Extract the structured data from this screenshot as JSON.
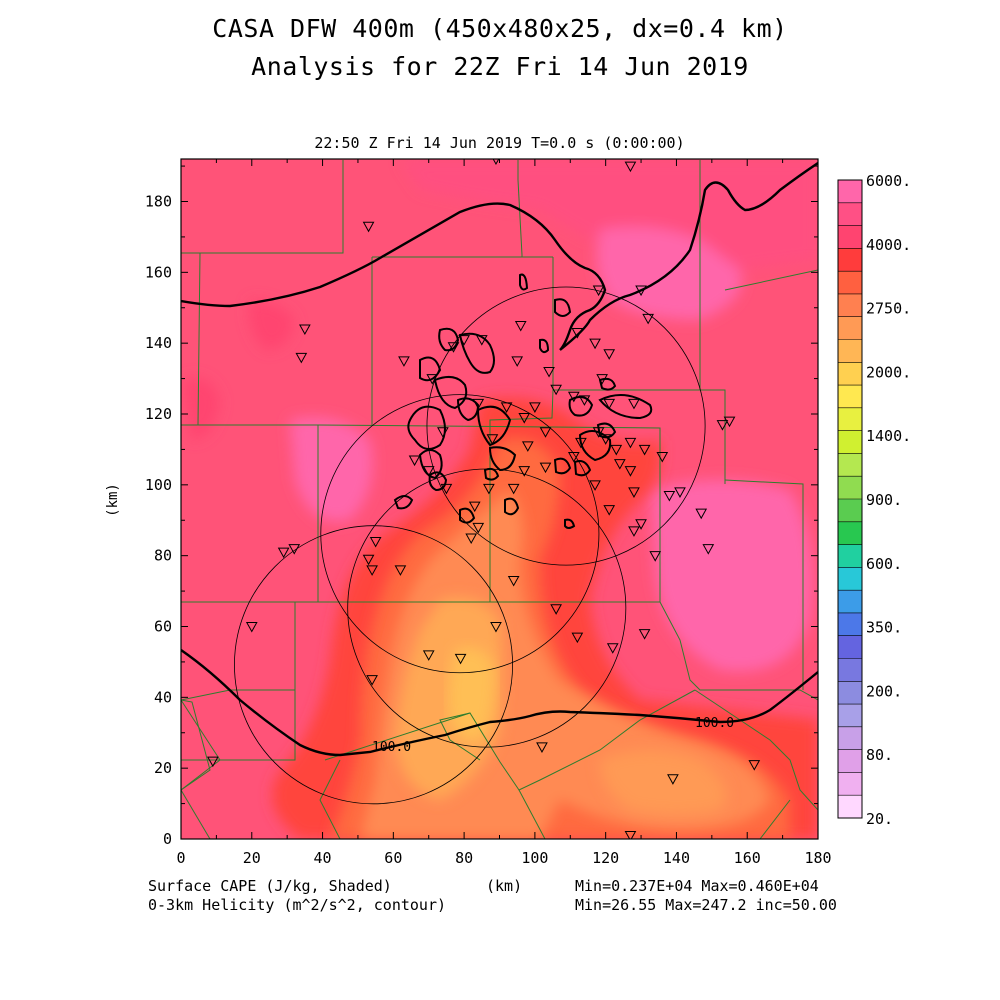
{
  "header": {
    "title_line1": "CASA DFW 400m (450x480x25, dx=0.4 km)",
    "title_line2": "Analysis for 22Z Fri 14 Jun 2019",
    "subtitle": "22:50 Z Fri 14 Jun 2019   T=0.0 s (0:00:00)"
  },
  "footer": {
    "field1_label": "Surface CAPE (J/kg, Shaded)",
    "field2_label": "0-3km Helicity (m^2/s^2, contour)",
    "xunit": "(km)",
    "field1_stats": "Min=0.237E+04 Max=0.460E+04",
    "field2_stats": "Min=26.55 Max=247.2 inc=50.00"
  },
  "chart_data": {
    "type": "heatmap",
    "xlabel": "(km)",
    "ylabel": "(km)",
    "xlim": [
      0,
      180
    ],
    "ylim": [
      0,
      192
    ],
    "xticks": [
      0,
      20,
      40,
      60,
      80,
      100,
      120,
      140,
      160,
      180
    ],
    "yticks": [
      0,
      20,
      40,
      60,
      80,
      100,
      120,
      140,
      160,
      180
    ],
    "colorbar": {
      "labels": [
        "6000.",
        "4000.",
        "2750.",
        "2000.",
        "1400.",
        "900.",
        "600.",
        "350.",
        "200.",
        "80.",
        "20."
      ],
      "colors": [
        "#ff66aa",
        "#ff5085",
        "#ff4470",
        "#ff3c3c",
        "#ff6040",
        "#ff8050",
        "#ff9a55",
        "#ffb655",
        "#ffd050",
        "#ffe850",
        "#e8f040",
        "#d0f030",
        "#b4e850",
        "#90dc50",
        "#5acc50",
        "#28c850",
        "#20d0a0",
        "#28c8d8",
        "#3c9ce8",
        "#4c78e8",
        "#6464e0",
        "#7878e0",
        "#8c8ce0",
        "#a8a0e8",
        "#c8a0e8",
        "#e0a0e8",
        "#f0b0f0",
        "#ffd8ff"
      ]
    },
    "cape_stats": {
      "min": 2370,
      "max": 4600
    },
    "helicity_stats": {
      "min": 26.55,
      "max": 247.2,
      "inc": 50.0
    },
    "contour_labels": [
      "100.0",
      "100.0"
    ],
    "radar_rings": [
      {
        "center": [
          54.4,
          49.2
        ],
        "radius": 39.3
      },
      {
        "center": [
          78.8,
          86.2
        ],
        "radius": 39.3
      },
      {
        "center": [
          108.8,
          116.6
        ],
        "radius": 39.3
      },
      {
        "center": [
          86.4,
          65.2
        ],
        "radius": 39.3
      }
    ],
    "stations": [
      [
        89,
        192
      ],
      [
        127,
        190
      ],
      [
        53,
        173
      ],
      [
        35,
        144
      ],
      [
        34,
        136
      ],
      [
        118,
        155
      ],
      [
        130,
        155
      ],
      [
        132,
        147
      ],
      [
        96,
        145
      ],
      [
        85,
        141
      ],
      [
        63,
        135
      ],
      [
        71,
        130
      ],
      [
        77,
        139
      ],
      [
        80,
        141
      ],
      [
        95,
        135
      ],
      [
        112,
        143
      ],
      [
        117,
        140
      ],
      [
        121,
        137
      ],
      [
        104,
        132
      ],
      [
        119,
        130
      ],
      [
        106,
        127
      ],
      [
        111,
        125
      ],
      [
        114,
        124
      ],
      [
        121,
        123
      ],
      [
        128,
        123
      ],
      [
        118,
        115
      ],
      [
        113,
        112
      ],
      [
        120,
        113
      ],
      [
        127,
        112
      ],
      [
        123,
        110
      ],
      [
        124,
        106
      ],
      [
        127,
        104
      ],
      [
        131,
        110
      ],
      [
        136,
        108
      ],
      [
        92,
        122
      ],
      [
        100,
        122
      ],
      [
        84,
        123
      ],
      [
        97,
        119
      ],
      [
        103,
        115
      ],
      [
        103,
        105
      ],
      [
        97,
        104
      ],
      [
        94,
        99
      ],
      [
        87,
        99
      ],
      [
        83,
        94
      ],
      [
        84,
        88
      ],
      [
        75,
        99
      ],
      [
        70,
        104
      ],
      [
        66,
        107
      ],
      [
        74,
        115
      ],
      [
        88,
        113
      ],
      [
        98,
        111
      ],
      [
        111,
        108
      ],
      [
        117,
        100
      ],
      [
        121,
        93
      ],
      [
        128,
        98
      ],
      [
        130,
        89
      ],
      [
        138,
        97
      ],
      [
        147,
        92
      ],
      [
        128,
        87
      ],
      [
        134,
        80
      ],
      [
        149,
        82
      ],
      [
        141,
        98
      ],
      [
        153,
        117
      ],
      [
        155,
        118
      ],
      [
        29,
        81
      ],
      [
        32,
        82
      ],
      [
        55,
        84
      ],
      [
        53,
        79
      ],
      [
        54,
        76
      ],
      [
        62,
        76
      ],
      [
        82,
        85
      ],
      [
        94,
        73
      ],
      [
        106,
        65
      ],
      [
        112,
        57
      ],
      [
        122,
        54
      ],
      [
        131,
        58
      ],
      [
        89,
        60
      ],
      [
        70,
        52
      ],
      [
        79,
        51
      ],
      [
        54,
        45
      ],
      [
        20,
        60
      ],
      [
        9,
        22
      ],
      [
        102,
        26
      ],
      [
        139,
        17
      ],
      [
        127,
        1
      ],
      [
        162,
        21
      ]
    ]
  }
}
